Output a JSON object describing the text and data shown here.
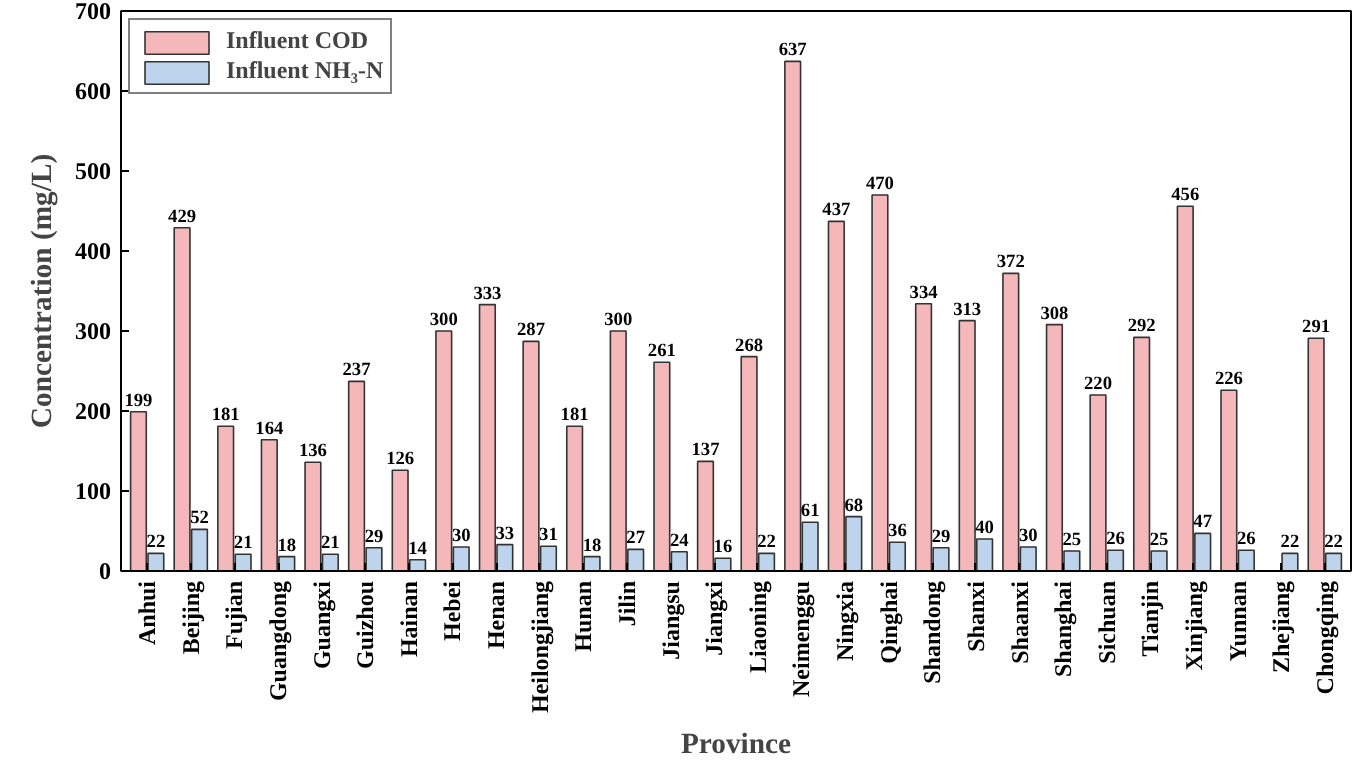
{
  "chart_data": {
    "type": "bar",
    "xlabel": "Province",
    "ylabel": "Concentration (mg/L)",
    "categories": [
      "Anhui",
      "Beijing",
      "Fujian",
      "Guangdong",
      "Guangxi",
      "Guizhou",
      "Hainan",
      "Hebei",
      "Henan",
      "Heilongjiang",
      "Hunan",
      "Jilin",
      "Jiangsu",
      "Jiangxi",
      "Liaoning",
      "Neimenggu",
      "Ningxia",
      "Qinghai",
      "Shandong",
      "Shanxi",
      "Shaanxi",
      "Shanghai",
      "Sichuan",
      "Tianjin",
      "Xinjiang",
      "Yunnan",
      "Zhejiang",
      "Chongqing"
    ],
    "series": [
      {
        "name": "Influent COD",
        "color": "#f4b8ba",
        "values": [
          199,
          429,
          181,
          164,
          136,
          237,
          126,
          300,
          333,
          287,
          181,
          300,
          261,
          137,
          268,
          637,
          437,
          470,
          334,
          313,
          372,
          308,
          220,
          292,
          456,
          226,
          null,
          291
        ]
      },
      {
        "name": "Influent NH₃-N",
        "color": "#bdd4ec",
        "values": [
          22,
          52,
          21,
          18,
          21,
          29,
          14,
          30,
          33,
          31,
          18,
          27,
          24,
          16,
          22,
          61,
          68,
          36,
          29,
          40,
          30,
          25,
          26,
          25,
          47,
          26,
          22,
          22
        ]
      }
    ],
    "ylim": [
      0,
      700
    ],
    "yticks": [
      0,
      100,
      200,
      300,
      400,
      500,
      600,
      700
    ],
    "grid": false,
    "legend": "top left",
    "data_labels": true
  }
}
